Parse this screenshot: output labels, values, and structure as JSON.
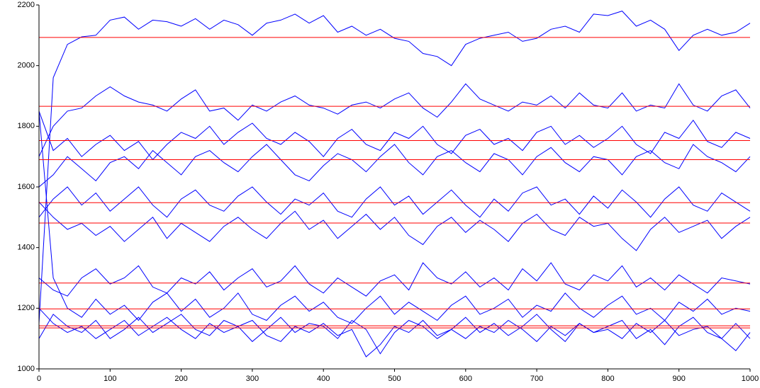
{
  "chart_data": {
    "type": "line",
    "x": [
      0,
      20,
      40,
      60,
      80,
      100,
      120,
      140,
      160,
      180,
      200,
      220,
      240,
      260,
      280,
      300,
      320,
      340,
      360,
      380,
      400,
      420,
      440,
      460,
      480,
      500,
      520,
      540,
      560,
      580,
      600,
      620,
      640,
      660,
      680,
      700,
      720,
      740,
      760,
      780,
      800,
      820,
      840,
      860,
      880,
      900,
      920,
      940,
      960,
      980,
      1000
    ],
    "series": [
      {
        "color": "#0000ff",
        "values": [
          1150,
          1960,
          2070,
          2095,
          2100,
          2150,
          2160,
          2120,
          2150,
          2145,
          2130,
          2155,
          2120,
          2150,
          2135,
          2100,
          2140,
          2150,
          2170,
          2140,
          2165,
          2110,
          2130,
          2100,
          2120,
          2090,
          2080,
          2040,
          2030,
          2000,
          2070,
          2090,
          2100,
          2110,
          2080,
          2090,
          2120,
          2130,
          2110,
          2170,
          2165,
          2180,
          2130,
          2150,
          2120,
          2050,
          2100,
          2120,
          2100,
          2110,
          2140
        ]
      },
      {
        "color": "#0000ff",
        "values": [
          1700,
          1800,
          1850,
          1860,
          1900,
          1930,
          1900,
          1880,
          1870,
          1850,
          1890,
          1920,
          1850,
          1860,
          1820,
          1870,
          1850,
          1880,
          1900,
          1870,
          1860,
          1840,
          1870,
          1880,
          1860,
          1890,
          1910,
          1860,
          1830,
          1880,
          1940,
          1890,
          1870,
          1850,
          1880,
          1870,
          1900,
          1860,
          1910,
          1870,
          1860,
          1910,
          1850,
          1870,
          1860,
          1940,
          1870,
          1850,
          1900,
          1920,
          1860
        ]
      },
      {
        "color": "#0000ff",
        "values": [
          1850,
          1720,
          1760,
          1700,
          1740,
          1770,
          1720,
          1750,
          1690,
          1740,
          1780,
          1760,
          1800,
          1740,
          1780,
          1810,
          1760,
          1740,
          1780,
          1750,
          1700,
          1760,
          1790,
          1740,
          1720,
          1780,
          1760,
          1800,
          1740,
          1710,
          1770,
          1790,
          1740,
          1760,
          1720,
          1780,
          1800,
          1740,
          1770,
          1730,
          1760,
          1800,
          1740,
          1710,
          1780,
          1760,
          1820,
          1750,
          1730,
          1780,
          1760
        ]
      },
      {
        "color": "#0000ff",
        "values": [
          1600,
          1640,
          1700,
          1660,
          1620,
          1680,
          1700,
          1660,
          1720,
          1680,
          1640,
          1700,
          1720,
          1680,
          1650,
          1700,
          1740,
          1690,
          1640,
          1620,
          1670,
          1710,
          1690,
          1650,
          1700,
          1740,
          1680,
          1640,
          1700,
          1720,
          1680,
          1650,
          1710,
          1690,
          1640,
          1700,
          1730,
          1680,
          1650,
          1700,
          1690,
          1640,
          1700,
          1720,
          1680,
          1660,
          1740,
          1700,
          1680,
          1650,
          1700
        ]
      },
      {
        "color": "#0000ff",
        "values": [
          1500,
          1560,
          1600,
          1540,
          1580,
          1520,
          1560,
          1600,
          1540,
          1500,
          1560,
          1590,
          1540,
          1520,
          1570,
          1600,
          1550,
          1510,
          1560,
          1540,
          1580,
          1520,
          1500,
          1560,
          1600,
          1540,
          1570,
          1510,
          1550,
          1590,
          1540,
          1500,
          1560,
          1520,
          1580,
          1600,
          1540,
          1560,
          1510,
          1570,
          1530,
          1590,
          1550,
          1500,
          1560,
          1600,
          1540,
          1520,
          1580,
          1550,
          1520
        ]
      },
      {
        "color": "#0000ff",
        "values": [
          1550,
          1500,
          1460,
          1480,
          1440,
          1470,
          1420,
          1460,
          1500,
          1430,
          1480,
          1450,
          1420,
          1470,
          1500,
          1460,
          1430,
          1480,
          1520,
          1460,
          1490,
          1430,
          1470,
          1510,
          1460,
          1500,
          1440,
          1410,
          1470,
          1500,
          1450,
          1490,
          1460,
          1420,
          1480,
          1510,
          1460,
          1440,
          1500,
          1470,
          1480,
          1430,
          1390,
          1460,
          1500,
          1450,
          1470,
          1490,
          1430,
          1470,
          1500
        ]
      },
      {
        "color": "#0000ff",
        "values": [
          1300,
          1260,
          1240,
          1300,
          1330,
          1280,
          1300,
          1340,
          1270,
          1250,
          1300,
          1280,
          1320,
          1260,
          1300,
          1330,
          1270,
          1290,
          1340,
          1280,
          1250,
          1300,
          1270,
          1240,
          1290,
          1310,
          1260,
          1350,
          1300,
          1280,
          1320,
          1270,
          1300,
          1260,
          1330,
          1290,
          1350,
          1280,
          1260,
          1310,
          1290,
          1340,
          1270,
          1300,
          1260,
          1310,
          1280,
          1250,
          1300,
          1290,
          1280
        ]
      },
      {
        "color": "#0000ff",
        "values": [
          1850,
          1300,
          1200,
          1170,
          1230,
          1180,
          1210,
          1160,
          1220,
          1250,
          1190,
          1230,
          1170,
          1200,
          1250,
          1180,
          1160,
          1210,
          1240,
          1190,
          1220,
          1170,
          1150,
          1200,
          1240,
          1180,
          1220,
          1190,
          1160,
          1210,
          1240,
          1180,
          1200,
          1230,
          1170,
          1210,
          1190,
          1250,
          1200,
          1170,
          1210,
          1240,
          1180,
          1200,
          1160,
          1220,
          1190,
          1230,
          1180,
          1200,
          1190
        ]
      },
      {
        "color": "#0000ff",
        "values": [
          1100,
          1180,
          1140,
          1120,
          1160,
          1100,
          1130,
          1170,
          1120,
          1150,
          1180,
          1130,
          1110,
          1160,
          1140,
          1090,
          1130,
          1170,
          1120,
          1150,
          1140,
          1100,
          1160,
          1130,
          1050,
          1120,
          1160,
          1140,
          1100,
          1130,
          1170,
          1120,
          1150,
          1110,
          1140,
          1180,
          1130,
          1090,
          1150,
          1120,
          1140,
          1160,
          1100,
          1130,
          1080,
          1140,
          1170,
          1120,
          1100,
          1150,
          1100
        ]
      },
      {
        "color": "#0000ff",
        "values": [
          1200,
          1150,
          1120,
          1140,
          1100,
          1130,
          1160,
          1110,
          1140,
          1170,
          1130,
          1100,
          1150,
          1120,
          1140,
          1160,
          1110,
          1090,
          1140,
          1120,
          1150,
          1110,
          1130,
          1040,
          1080,
          1140,
          1120,
          1160,
          1110,
          1130,
          1100,
          1140,
          1120,
          1160,
          1130,
          1090,
          1140,
          1110,
          1150,
          1120,
          1130,
          1100,
          1150,
          1120,
          1160,
          1110,
          1130,
          1140,
          1100,
          1060,
          1120
        ]
      }
    ],
    "reference_lines": [
      2093,
      1866,
      1753,
      1690,
      1548,
      1481,
      1283,
      1198,
      1142,
      1135
    ],
    "reference_color": "#ff0000",
    "xlim": [
      0,
      1000
    ],
    "xticks": [
      0,
      100,
      200,
      300,
      400,
      500,
      600,
      700,
      800,
      900,
      1000
    ],
    "ylim": [
      1000,
      2200
    ],
    "yticks": [
      1000,
      1200,
      1400,
      1600,
      1800,
      2000,
      2200
    ]
  }
}
